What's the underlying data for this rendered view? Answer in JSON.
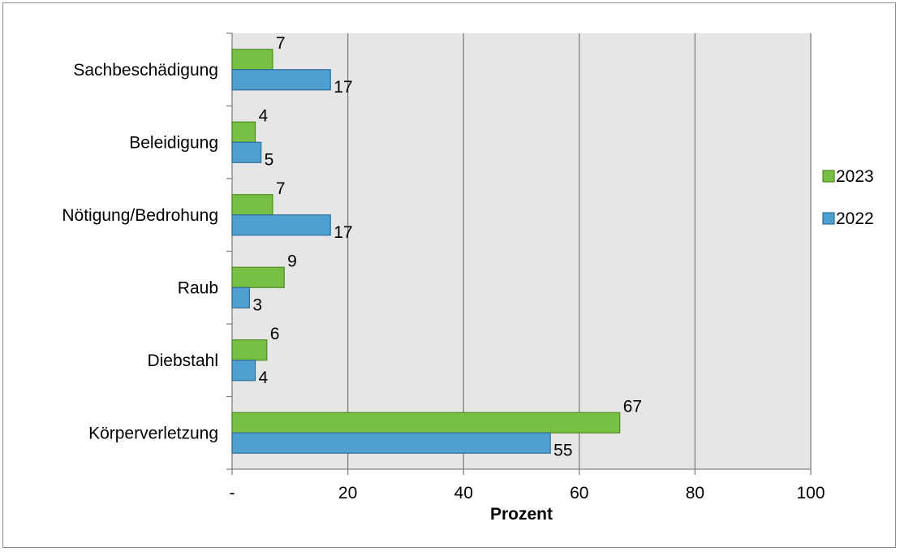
{
  "chart_data": {
    "type": "bar",
    "orientation": "horizontal",
    "categories": [
      "Sachbeschädigung",
      "Beleidigung",
      "Nötigung/Bedrohung",
      "Raub",
      "Diebstahl",
      "Körperverletzung"
    ],
    "series": [
      {
        "name": "2023",
        "color": "#77c043",
        "stroke": "#4e8a22",
        "values": [
          7,
          4,
          7,
          9,
          6,
          67
        ]
      },
      {
        "name": "2022",
        "color": "#4f9fd0",
        "stroke": "#2e6f9c",
        "values": [
          17,
          5,
          17,
          3,
          4,
          55
        ]
      }
    ],
    "xlabel": "Prozent",
    "xlim": [
      0,
      100
    ],
    "xticks": [
      0,
      20,
      40,
      60,
      80,
      100
    ],
    "xtick_labels": [
      "-",
      "20",
      "40",
      "60",
      "80",
      "100"
    ],
    "grid": true,
    "plot_background": "#e6e6e6",
    "legend_position": "right"
  }
}
